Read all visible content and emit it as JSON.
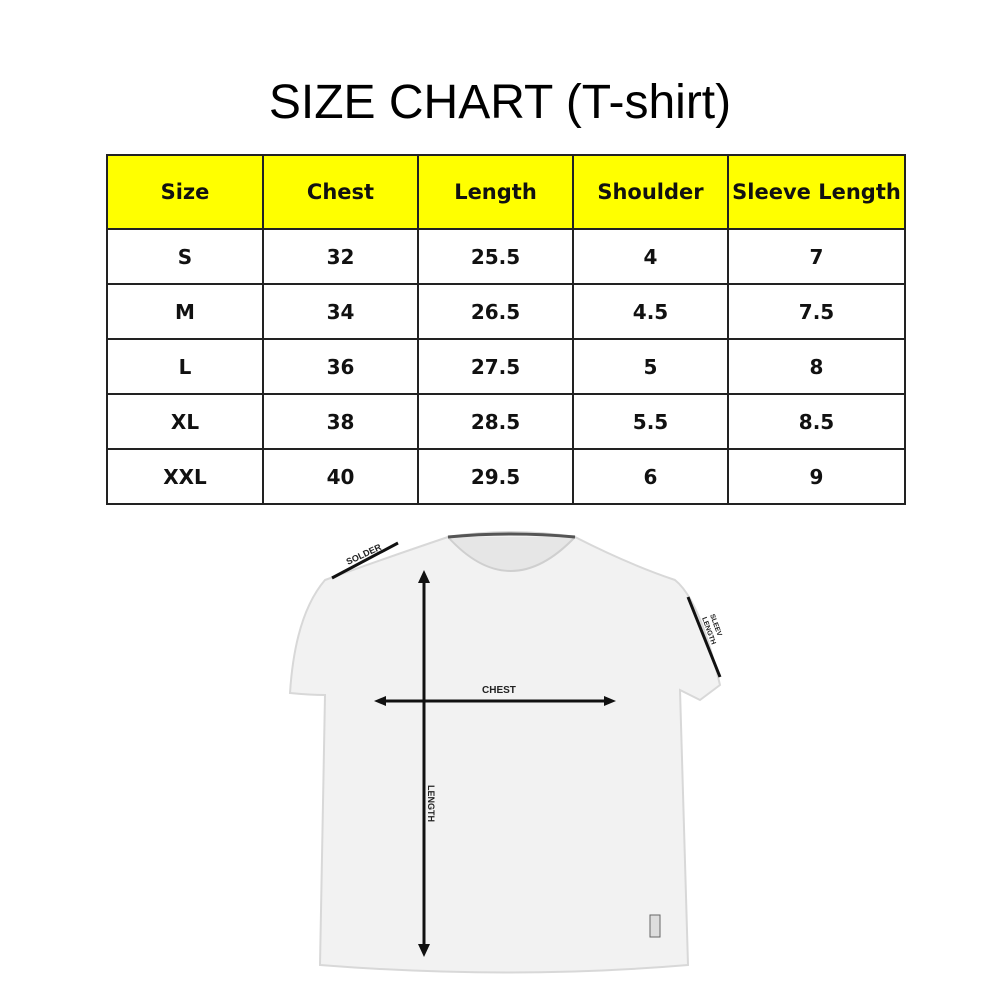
{
  "title": "SIZE CHART (T-shirt)",
  "table": {
    "headers": [
      "Size",
      "Chest",
      "Length",
      "Shoulder",
      "Sleeve Length"
    ],
    "rows": [
      [
        "S",
        "32",
        "25.5",
        "4",
        "7"
      ],
      [
        "M",
        "34",
        "26.5",
        "4.5",
        "7.5"
      ],
      [
        "L",
        "36",
        "27.5",
        "5",
        "8"
      ],
      [
        "XL",
        "38",
        "28.5",
        "5.5",
        "8.5"
      ],
      [
        "XXL",
        "40",
        "29.5",
        "6",
        "9"
      ]
    ],
    "header_color": "#ffff00"
  },
  "diagram": {
    "solder_label": "SOLDER",
    "chest_label": "CHEST",
    "length_label": "LENGTH",
    "sleeve_label_1": "SLEEV",
    "sleeve_label_2": "LENGTH"
  }
}
